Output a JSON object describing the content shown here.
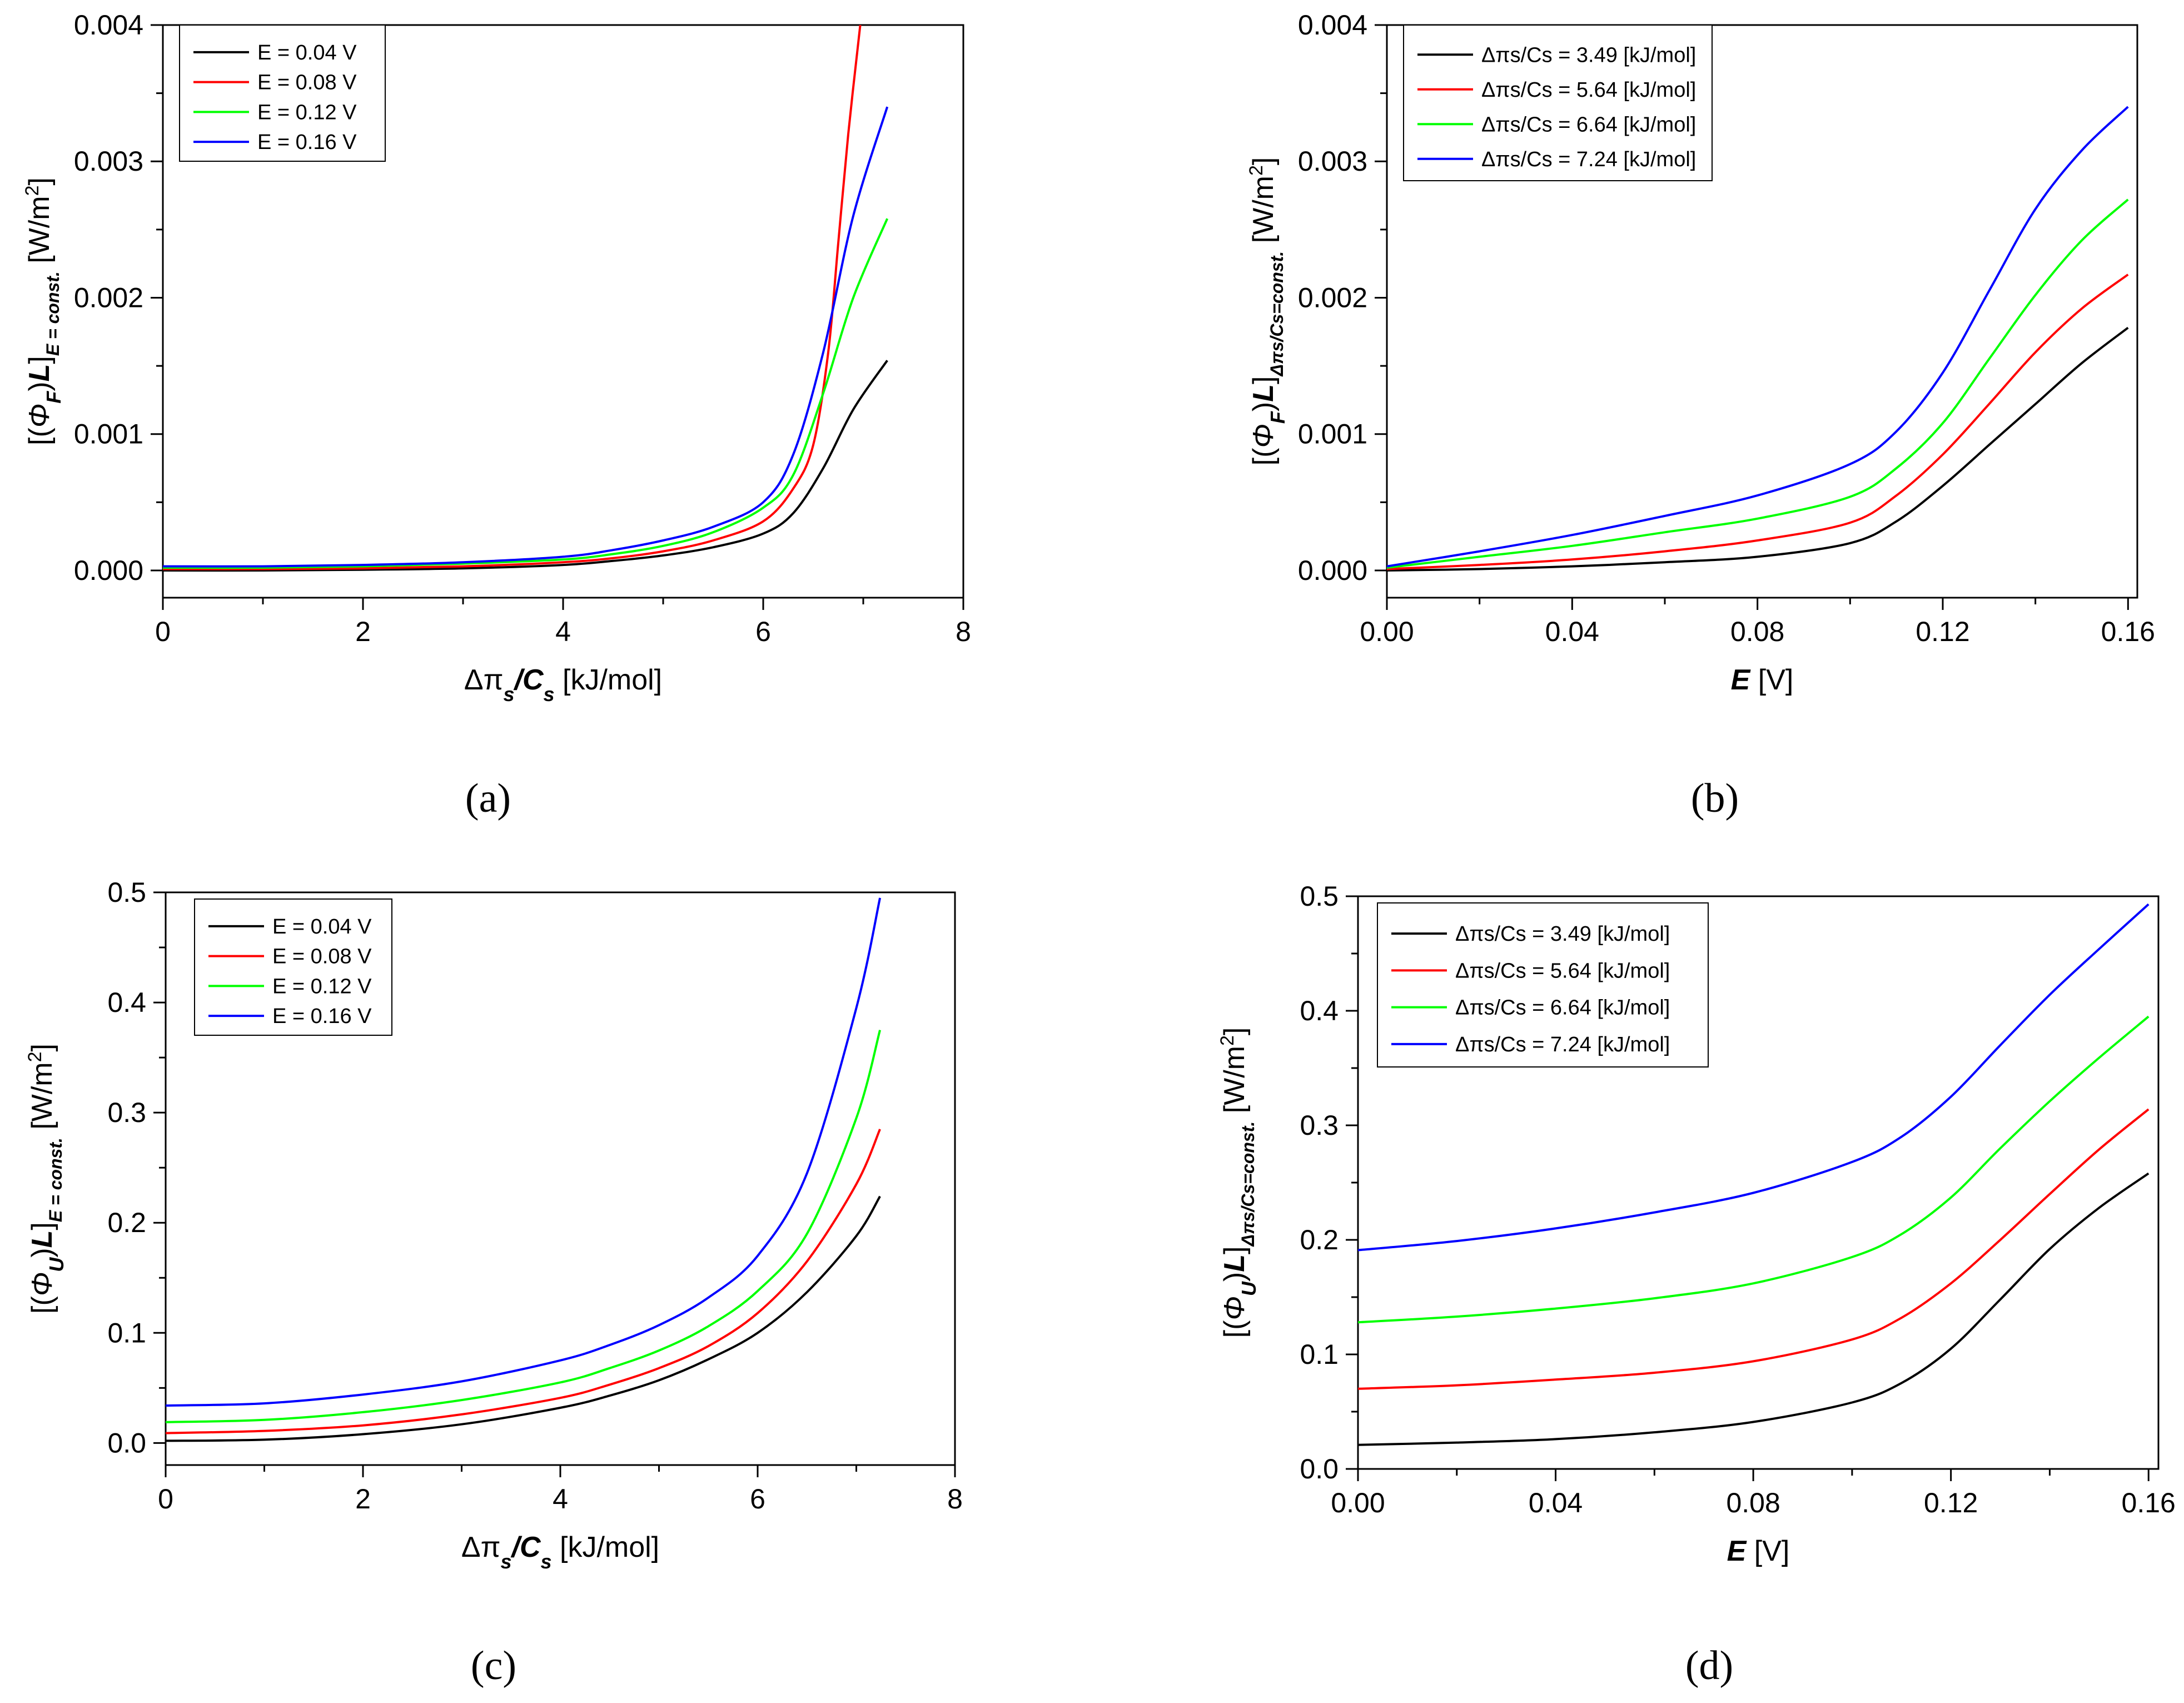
{
  "figure": {
    "panels": [
      {
        "caption": "(a)",
        "ylabel_unit": "[W/m",
        "ylabel_exp": "2",
        "ylabel_close": "]",
        "ylabel_sub": "E = const.",
        "ylabel_sym": "Φ",
        "ylabel_symsub": "F",
        "xlabel": "Δπ",
        "xlabel_s": "s",
        "xlabel_c": "/C",
        "xlabel_unit": "[kJ/mol]"
      },
      {
        "caption": "(b)",
        "ylabel_unit": "[W/m",
        "ylabel_exp": "2",
        "ylabel_close": "]",
        "ylabel_sub": "Δπs/Cs=const.",
        "ylabel_sym": "Φ",
        "ylabel_symsub": "F",
        "xlabel": "E",
        "xlabel_unit": "[V]"
      },
      {
        "caption": "(c)",
        "ylabel_unit": "[W/m",
        "ylabel_exp": "2",
        "ylabel_close": "]",
        "ylabel_sub": "E = const.",
        "ylabel_sym": "Φ",
        "ylabel_symsub": "U",
        "xlabel": "Δπ",
        "xlabel_s": "s",
        "xlabel_c": "/C",
        "xlabel_unit": "[kJ/mol]"
      },
      {
        "caption": "(d)",
        "ylabel_unit": "[W/m",
        "ylabel_exp": "2",
        "ylabel_close": "]",
        "ylabel_sub": "Δπs/Cs=const.",
        "ylabel_sym": "Φ",
        "ylabel_symsub": "U",
        "xlabel": "E",
        "xlabel_unit": "[V]"
      }
    ]
  },
  "chart_data": [
    {
      "type": "line",
      "panel": "(a)",
      "title": "",
      "xlabel": "Δπs/Cs [kJ/mol]",
      "ylabel": "[(ΦF/L]E = const. [W/m2]",
      "xlim": [
        0,
        8
      ],
      "ylim": [
        -0.0002,
        0.004
      ],
      "xticks": [
        0,
        2,
        4,
        6,
        8
      ],
      "xtick_labels": [
        "0",
        "2",
        "4",
        "6",
        "8"
      ],
      "yticks": [
        0,
        0.001,
        0.002,
        0.003,
        0.004
      ],
      "ytick_labels": [
        "0.000",
        "0.001",
        "0.002",
        "0.003",
        "0.004"
      ],
      "legend_position": "top-left",
      "series": [
        {
          "name": "E = 0.04 V",
          "color": "#000000",
          "x": [
            0,
            1,
            2,
            3,
            4,
            4.5,
            5,
            5.5,
            6,
            6.3,
            6.6,
            6.9,
            7.24
          ],
          "values": [
            0,
            0,
            5e-06,
            1.5e-05,
            4e-05,
            7e-05,
            0.00011,
            0.00017,
            0.00027,
            0.00042,
            0.00075,
            0.00118,
            0.00154
          ]
        },
        {
          "name": "E = 0.08 V",
          "color": "#ff0000",
          "x": [
            0,
            1,
            2,
            3,
            4,
            4.5,
            5,
            5.5,
            6,
            6.3,
            6.5,
            6.65,
            6.75,
            6.85,
            6.97
          ],
          "values": [
            1e-05,
            1e-05,
            1.5e-05,
            3e-05,
            6e-05,
            9e-05,
            0.00014,
            0.00022,
            0.00036,
            0.0006,
            0.00092,
            0.0016,
            0.0024,
            0.0032,
            0.004
          ]
        },
        {
          "name": "E = 0.12 V",
          "color": "#00ff00",
          "x": [
            0,
            1,
            2,
            3,
            4,
            4.5,
            5,
            5.5,
            6,
            6.3,
            6.6,
            6.9,
            7.24
          ],
          "values": [
            2e-05,
            2e-05,
            3e-05,
            5e-05,
            8e-05,
            0.00012,
            0.00018,
            0.00028,
            0.00046,
            0.0007,
            0.0013,
            0.002,
            0.00258
          ]
        },
        {
          "name": "E = 0.16 V",
          "color": "#0000ff",
          "x": [
            0,
            1,
            2,
            3,
            4,
            4.5,
            5,
            5.5,
            6,
            6.3,
            6.6,
            6.9,
            7.24
          ],
          "values": [
            3e-05,
            3e-05,
            4e-05,
            6e-05,
            0.0001,
            0.00015,
            0.00022,
            0.00032,
            0.0005,
            0.00085,
            0.0016,
            0.0026,
            0.0034
          ]
        }
      ]
    },
    {
      "type": "line",
      "panel": "(b)",
      "title": "",
      "xlabel": "E [V]",
      "ylabel": "[(ΦF/L]Δπs/Cs=const. [W/m2]",
      "xlim": [
        0,
        0.162
      ],
      "ylim": [
        -0.0002,
        0.004
      ],
      "xticks": [
        0,
        0.04,
        0.08,
        0.12,
        0.16
      ],
      "xtick_labels": [
        "0.00",
        "0.04",
        "0.08",
        "0.12",
        "0.16"
      ],
      "yticks": [
        0,
        0.001,
        0.002,
        0.003,
        0.004
      ],
      "ytick_labels": [
        "0.000",
        "0.001",
        "0.002",
        "0.003",
        "0.004"
      ],
      "legend_position": "top-left",
      "series": [
        {
          "name": "Δπs/Cs = 3.49 [kJ/mol]",
          "color": "#000000",
          "x": [
            0,
            0.02,
            0.04,
            0.06,
            0.08,
            0.1,
            0.11,
            0.12,
            0.13,
            0.14,
            0.15,
            0.16
          ],
          "values": [
            0,
            1e-05,
            3e-05,
            6e-05,
            0.0001,
            0.0002,
            0.00036,
            0.00062,
            0.00092,
            0.00122,
            0.00152,
            0.00178
          ]
        },
        {
          "name": "Δπs/Cs = 5.64 [kJ/mol]",
          "color": "#ff0000",
          "x": [
            0,
            0.02,
            0.04,
            0.06,
            0.08,
            0.1,
            0.11,
            0.12,
            0.13,
            0.14,
            0.15,
            0.16
          ],
          "values": [
            1e-05,
            4e-05,
            8e-05,
            0.00014,
            0.00022,
            0.00035,
            0.00055,
            0.00085,
            0.00122,
            0.0016,
            0.00192,
            0.00217
          ]
        },
        {
          "name": "Δπs/Cs = 6.64 [kJ/mol]",
          "color": "#00ff00",
          "x": [
            0,
            0.02,
            0.04,
            0.06,
            0.08,
            0.1,
            0.11,
            0.12,
            0.13,
            0.14,
            0.15,
            0.16
          ],
          "values": [
            2e-05,
            0.0001,
            0.00018,
            0.00028,
            0.00038,
            0.00054,
            0.00075,
            0.00108,
            0.00155,
            0.00202,
            0.00242,
            0.00272
          ]
        },
        {
          "name": "Δπs/Cs = 7.24 [kJ/mol]",
          "color": "#0000ff",
          "x": [
            0,
            0.02,
            0.04,
            0.06,
            0.08,
            0.1,
            0.11,
            0.12,
            0.13,
            0.14,
            0.15,
            0.16
          ],
          "values": [
            3e-05,
            0.00014,
            0.00026,
            0.0004,
            0.00055,
            0.00078,
            0.00102,
            0.00145,
            0.00205,
            0.00265,
            0.00308,
            0.0034
          ]
        }
      ]
    },
    {
      "type": "line",
      "panel": "(c)",
      "title": "",
      "xlabel": "Δπs/Cs [kJ/mol]",
      "ylabel": "[(ΦU/L]E = const. [W/m2]",
      "xlim": [
        0,
        8
      ],
      "ylim": [
        -0.02,
        0.5
      ],
      "xticks": [
        0,
        2,
        4,
        6,
        8
      ],
      "xtick_labels": [
        "0",
        "2",
        "4",
        "6",
        "8"
      ],
      "yticks": [
        0,
        0.1,
        0.2,
        0.3,
        0.4,
        0.5
      ],
      "ytick_labels": [
        "0.0",
        "0.1",
        "0.2",
        "0.3",
        "0.4",
        "0.5"
      ],
      "legend_position": "top-left",
      "series": [
        {
          "name": "E = 0.04 V",
          "color": "#000000",
          "x": [
            0,
            1,
            2,
            3,
            4,
            4.5,
            5,
            5.5,
            6,
            6.5,
            7,
            7.24
          ],
          "values": [
            0.002,
            0.003,
            0.008,
            0.017,
            0.032,
            0.043,
            0.057,
            0.076,
            0.1,
            0.137,
            0.188,
            0.224
          ]
        },
        {
          "name": "E = 0.08 V",
          "color": "#ff0000",
          "x": [
            0,
            1,
            2,
            3,
            4,
            4.5,
            5,
            5.5,
            6,
            6.5,
            7,
            7.24
          ],
          "values": [
            0.009,
            0.011,
            0.016,
            0.026,
            0.041,
            0.053,
            0.068,
            0.088,
            0.118,
            0.165,
            0.235,
            0.285
          ]
        },
        {
          "name": "E = 0.12 V",
          "color": "#00ff00",
          "x": [
            0,
            1,
            2,
            3,
            4,
            4.5,
            5,
            5.5,
            6,
            6.5,
            7,
            7.24
          ],
          "values": [
            0.019,
            0.021,
            0.028,
            0.039,
            0.055,
            0.068,
            0.084,
            0.106,
            0.138,
            0.19,
            0.295,
            0.375
          ]
        },
        {
          "name": "E = 0.16 V",
          "color": "#0000ff",
          "x": [
            0,
            1,
            2,
            3,
            4,
            4.5,
            5,
            5.5,
            6,
            6.5,
            7,
            7.24
          ],
          "values": [
            0.034,
            0.036,
            0.044,
            0.056,
            0.075,
            0.089,
            0.107,
            0.132,
            0.17,
            0.245,
            0.395,
            0.495
          ]
        }
      ]
    },
    {
      "type": "line",
      "panel": "(d)",
      "title": "",
      "xlabel": "E [V]",
      "ylabel": "[(ΦU)L]Δπs/Cs=const. [W/m2]",
      "xlim": [
        0,
        0.162
      ],
      "ylim": [
        0,
        0.5
      ],
      "xticks": [
        0,
        0.04,
        0.08,
        0.12,
        0.16
      ],
      "xtick_labels": [
        "0.00",
        "0.04",
        "0.08",
        "0.12",
        "0.16"
      ],
      "yticks": [
        0,
        0.1,
        0.2,
        0.3,
        0.4,
        0.5
      ],
      "ytick_labels": [
        "0.0",
        "0.1",
        "0.2",
        "0.3",
        "0.4",
        "0.5"
      ],
      "legend_position": "top-left",
      "series": [
        {
          "name": "Δπs/Cs = 3.49 [kJ/mol]",
          "color": "#000000",
          "x": [
            0,
            0.02,
            0.04,
            0.06,
            0.08,
            0.1,
            0.11,
            0.12,
            0.13,
            0.14,
            0.15,
            0.16
          ],
          "values": [
            0.021,
            0.023,
            0.026,
            0.032,
            0.041,
            0.058,
            0.075,
            0.105,
            0.148,
            0.192,
            0.228,
            0.258
          ]
        },
        {
          "name": "Δπs/Cs = 5.64 [kJ/mol]",
          "color": "#ff0000",
          "x": [
            0,
            0.02,
            0.04,
            0.06,
            0.08,
            0.1,
            0.11,
            0.12,
            0.13,
            0.14,
            0.15,
            0.16
          ],
          "values": [
            0.07,
            0.073,
            0.078,
            0.084,
            0.094,
            0.113,
            0.132,
            0.162,
            0.2,
            0.24,
            0.279,
            0.314
          ]
        },
        {
          "name": "Δπs/Cs = 6.64 [kJ/mol]",
          "color": "#00ff00",
          "x": [
            0,
            0.02,
            0.04,
            0.06,
            0.08,
            0.1,
            0.11,
            0.12,
            0.13,
            0.14,
            0.15,
            0.16
          ],
          "values": [
            0.128,
            0.133,
            0.14,
            0.149,
            0.162,
            0.185,
            0.205,
            0.237,
            0.28,
            0.321,
            0.359,
            0.395
          ]
        },
        {
          "name": "Δπs/Cs = 7.24 [kJ/mol]",
          "color": "#0000ff",
          "x": [
            0,
            0.02,
            0.04,
            0.06,
            0.08,
            0.1,
            0.11,
            0.12,
            0.13,
            0.14,
            0.15,
            0.16
          ],
          "values": [
            0.191,
            0.199,
            0.21,
            0.224,
            0.241,
            0.268,
            0.29,
            0.325,
            0.37,
            0.414,
            0.454,
            0.493
          ]
        }
      ]
    }
  ]
}
